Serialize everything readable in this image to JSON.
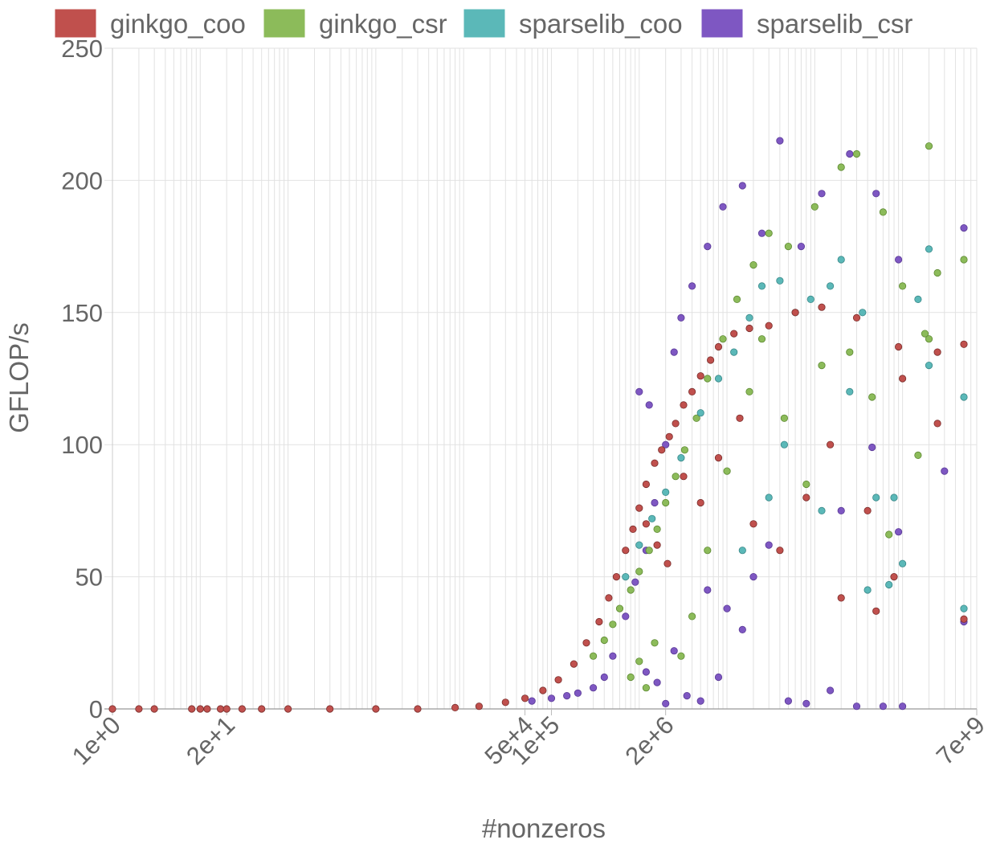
{
  "chart_data": {
    "type": "scatter",
    "title": "",
    "xlabel": "#nonzeros",
    "ylabel": "GFLOP/s",
    "xscale": "log10",
    "xlim": [
      1,
      7000000000
    ],
    "ylim": [
      0,
      250
    ],
    "y_ticks": [
      0,
      50,
      100,
      150,
      200,
      250
    ],
    "x_tick_labels": [
      {
        "value": 1,
        "label": "1e+0"
      },
      {
        "value": 20,
        "label": "2e+1"
      },
      {
        "value": 50000,
        "label": "5e+4"
      },
      {
        "value": 100000,
        "label": "1e+5"
      },
      {
        "value": 2000000,
        "label": "2e+6"
      },
      {
        "value": 7000000000,
        "label": "7e+9"
      }
    ],
    "grid": true,
    "legend_position": "top",
    "series": [
      {
        "name": "ginkgo_coo",
        "color": "#c0504d",
        "edge": "#7a2e2c",
        "points": [
          [
            1,
            0
          ],
          [
            2,
            0
          ],
          [
            3,
            0
          ],
          [
            8,
            0
          ],
          [
            10,
            0
          ],
          [
            12,
            0
          ],
          [
            17,
            0
          ],
          [
            20,
            0
          ],
          [
            30,
            0
          ],
          [
            50,
            0
          ],
          [
            100,
            0
          ],
          [
            300,
            0
          ],
          [
            1000,
            0
          ],
          [
            3000,
            0
          ],
          [
            8000,
            0.5
          ],
          [
            15000,
            1
          ],
          [
            30000,
            2.5
          ],
          [
            50000,
            4
          ],
          [
            80000,
            7
          ],
          [
            120000,
            11
          ],
          [
            180000,
            17
          ],
          [
            250000,
            25
          ],
          [
            350000,
            33
          ],
          [
            450000,
            42
          ],
          [
            550000,
            50
          ],
          [
            700000,
            60
          ],
          [
            850000,
            68
          ],
          [
            1000000,
            76
          ],
          [
            1200000,
            85
          ],
          [
            1500000,
            93
          ],
          [
            1800000,
            98
          ],
          [
            2200000,
            103
          ],
          [
            2600000,
            108
          ],
          [
            3200000,
            115
          ],
          [
            4000000,
            120
          ],
          [
            5000000,
            126
          ],
          [
            6500000,
            132
          ],
          [
            8000000,
            137
          ],
          [
            12000000,
            142
          ],
          [
            18000000,
            144
          ],
          [
            30000000,
            145
          ],
          [
            60000000,
            150
          ],
          [
            120000000,
            152
          ],
          [
            300000000,
            148
          ],
          [
            900000000,
            137
          ],
          [
            1000000000,
            125
          ],
          [
            2500000000,
            108
          ],
          [
            2500000000,
            135
          ],
          [
            5000000000,
            138
          ],
          [
            5000000000,
            34
          ],
          [
            1200000,
            70
          ],
          [
            1600000,
            62
          ],
          [
            2100000,
            55
          ],
          [
            3200000,
            88
          ],
          [
            5000000,
            78
          ],
          [
            8000000,
            95
          ],
          [
            14000000,
            110
          ],
          [
            20000000,
            70
          ],
          [
            40000000,
            60
          ],
          [
            80000000,
            80
          ],
          [
            150000000,
            100
          ],
          [
            400000000,
            75
          ],
          [
            800000000,
            50
          ],
          [
            200000000,
            42
          ],
          [
            500000000,
            37
          ]
        ]
      },
      {
        "name": "ginkgo_csr",
        "color": "#8cbb5a",
        "edge": "#5e8a33",
        "points": [
          [
            300000,
            20
          ],
          [
            400000,
            26
          ],
          [
            500000,
            32
          ],
          [
            600000,
            38
          ],
          [
            800000,
            45
          ],
          [
            1000000,
            52
          ],
          [
            1300000,
            60
          ],
          [
            1600000,
            68
          ],
          [
            2000000,
            78
          ],
          [
            2600000,
            88
          ],
          [
            3300000,
            98
          ],
          [
            4500000,
            110
          ],
          [
            6000000,
            125
          ],
          [
            9000000,
            140
          ],
          [
            13000000,
            155
          ],
          [
            20000000,
            168
          ],
          [
            30000000,
            180
          ],
          [
            50000000,
            175
          ],
          [
            100000000,
            190
          ],
          [
            200000000,
            205
          ],
          [
            300000000,
            210
          ],
          [
            600000000,
            188
          ],
          [
            1000000000,
            160
          ],
          [
            2000000000,
            213
          ],
          [
            2500000000,
            165
          ],
          [
            5000000000,
            170
          ],
          [
            4000000,
            35
          ],
          [
            3000000,
            20
          ],
          [
            6000000,
            60
          ],
          [
            10000000,
            90
          ],
          [
            18000000,
            120
          ],
          [
            25000000,
            140
          ],
          [
            45000000,
            110
          ],
          [
            80000000,
            85
          ],
          [
            120000000,
            130
          ],
          [
            250000000,
            135
          ],
          [
            450000000,
            118
          ],
          [
            700000000,
            66
          ],
          [
            1500000000,
            96
          ],
          [
            1800000000,
            142
          ],
          [
            2000000000,
            140
          ],
          [
            1000000,
            18
          ],
          [
            1500000,
            25
          ],
          [
            800000,
            12
          ],
          [
            1200000,
            8
          ]
        ]
      },
      {
        "name": "sparselib_coo",
        "color": "#5bb8b8",
        "edge": "#3a8888",
        "points": [
          [
            700000,
            50
          ],
          [
            1000000,
            62
          ],
          [
            1400000,
            72
          ],
          [
            2000000,
            82
          ],
          [
            3000000,
            95
          ],
          [
            5000000,
            112
          ],
          [
            8000000,
            125
          ],
          [
            12000000,
            135
          ],
          [
            18000000,
            148
          ],
          [
            25000000,
            160
          ],
          [
            40000000,
            162
          ],
          [
            60000000,
            150
          ],
          [
            90000000,
            155
          ],
          [
            150000000,
            160
          ],
          [
            200000000,
            170
          ],
          [
            350000000,
            150
          ],
          [
            500000000,
            80
          ],
          [
            800000000,
            80
          ],
          [
            1000000000,
            55
          ],
          [
            1500000000,
            155
          ],
          [
            2000000000,
            174
          ],
          [
            2000000000,
            130
          ],
          [
            5000000000,
            118
          ],
          [
            5000000000,
            38
          ],
          [
            15000000,
            60
          ],
          [
            30000000,
            80
          ],
          [
            45000000,
            100
          ],
          [
            120000000,
            75
          ],
          [
            250000000,
            120
          ],
          [
            400000000,
            45
          ],
          [
            700000000,
            47
          ]
        ]
      },
      {
        "name": "sparselib_csr",
        "color": "#7e57c2",
        "edge": "#5a3a96",
        "points": [
          [
            60000,
            3
          ],
          [
            100000,
            4
          ],
          [
            150000,
            5
          ],
          [
            200000,
            6
          ],
          [
            300000,
            8
          ],
          [
            400000,
            12
          ],
          [
            500000,
            20
          ],
          [
            700000,
            35
          ],
          [
            900000,
            48
          ],
          [
            1200000,
            60
          ],
          [
            1500000,
            78
          ],
          [
            2000000,
            100
          ],
          [
            2500000,
            135
          ],
          [
            3000000,
            148
          ],
          [
            4000000,
            160
          ],
          [
            6000000,
            175
          ],
          [
            9000000,
            190
          ],
          [
            15000000,
            198
          ],
          [
            25000000,
            180
          ],
          [
            40000000,
            215
          ],
          [
            70000000,
            175
          ],
          [
            120000000,
            195
          ],
          [
            250000000,
            210
          ],
          [
            500000000,
            195
          ],
          [
            900000000,
            170
          ],
          [
            5000000000,
            182
          ],
          [
            3000000000,
            90
          ],
          [
            5000000000,
            33
          ],
          [
            2000000,
            2
          ],
          [
            3500000,
            5
          ],
          [
            5000000,
            3
          ],
          [
            8000000,
            12
          ],
          [
            15000000,
            30
          ],
          [
            20000000,
            50
          ],
          [
            30000000,
            62
          ],
          [
            50000000,
            3
          ],
          [
            80000000,
            2
          ],
          [
            150000000,
            7
          ],
          [
            300000000,
            1
          ],
          [
            600000000,
            1
          ],
          [
            1000000000,
            1
          ],
          [
            1200000,
            14
          ],
          [
            1600000,
            10
          ],
          [
            2500000,
            22
          ],
          [
            6000000,
            45
          ],
          [
            10000000,
            38
          ],
          [
            200000000,
            75
          ],
          [
            450000000,
            99
          ],
          [
            900000000,
            67
          ],
          [
            1000000,
            120
          ],
          [
            1300000,
            115
          ]
        ]
      }
    ]
  }
}
